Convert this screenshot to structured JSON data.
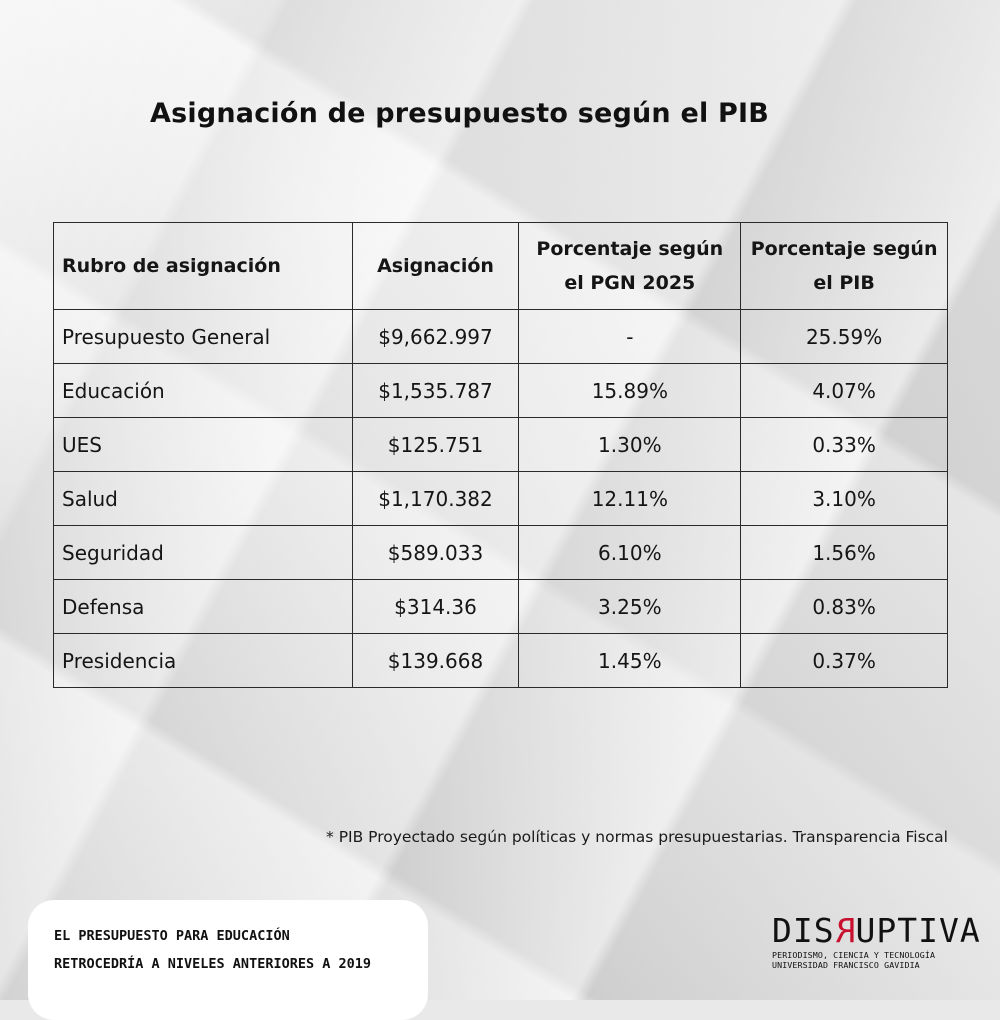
{
  "title": "Asignación de presupuesto según el PIB",
  "table": {
    "headers": [
      "Rubro de asignación",
      "Asignación",
      "Porcentaje según el PGN 2025",
      "Porcentaje según el PIB"
    ],
    "rows": [
      [
        "Presupuesto General",
        "$9,662.997",
        "-",
        "25.59%"
      ],
      [
        "Educación",
        "$1,535.787",
        "15.89%",
        "4.07%"
      ],
      [
        "UES",
        "$125.751",
        "1.30%",
        "0.33%"
      ],
      [
        "Salud",
        "$1,170.382",
        "12.11%",
        "3.10%"
      ],
      [
        "Seguridad",
        "$589.033",
        "6.10%",
        "1.56%"
      ],
      [
        "Defensa",
        "$314.36",
        "3.25%",
        "0.83%"
      ],
      [
        "Presidencia",
        "$139.668",
        "1.45%",
        "0.37%"
      ]
    ]
  },
  "footnote": "* PIB Proyectado según políticas y normas presupuestarias. Transparencia Fiscal",
  "headline": {
    "line1": "EL PRESUPUESTO PARA EDUCACIÓN",
    "line2": "RETROCEDRÍA A NIVELES ANTERIORES A 2019"
  },
  "brand": {
    "name_before": "DIS",
    "name_mirrored": "R",
    "name_after": "UPTIVA",
    "tagline1": "PERIODISMO, CIENCIA Y TECNOLOGÍA",
    "tagline2": "UNIVERSIDAD FRANCISCO GAVIDIA",
    "accent_color": "#c8102e"
  }
}
